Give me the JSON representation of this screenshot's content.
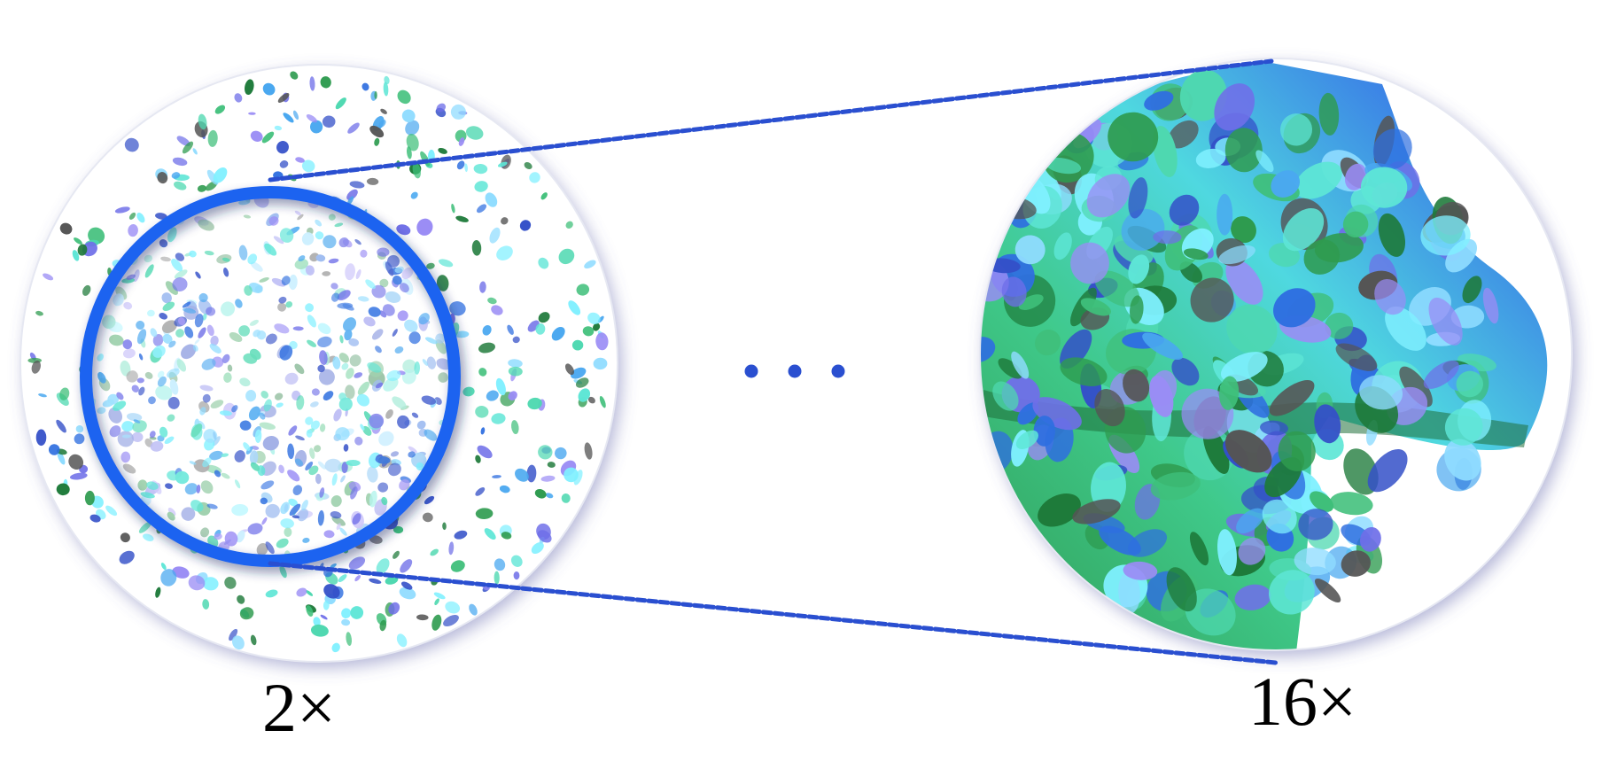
{
  "labels": {
    "left_zoom": "2×",
    "right_zoom": "16×"
  },
  "colors": {
    "accent_ring": "#1e63f0",
    "connector": "#2a4fd0",
    "ellipsis": "#2a4fd0",
    "splat_palette": [
      "#1e7a3a",
      "#2e9b4f",
      "#3fbf7a",
      "#4ed8b0",
      "#5ee6d6",
      "#7ff0ff",
      "#8fdcff",
      "#4aa8f0",
      "#2f6fe0",
      "#3450c8",
      "#6f6fe8",
      "#9a8cf5",
      "#555555"
    ]
  },
  "icons": {
    "ellipsis": "horizontal-ellipsis-dots"
  }
}
